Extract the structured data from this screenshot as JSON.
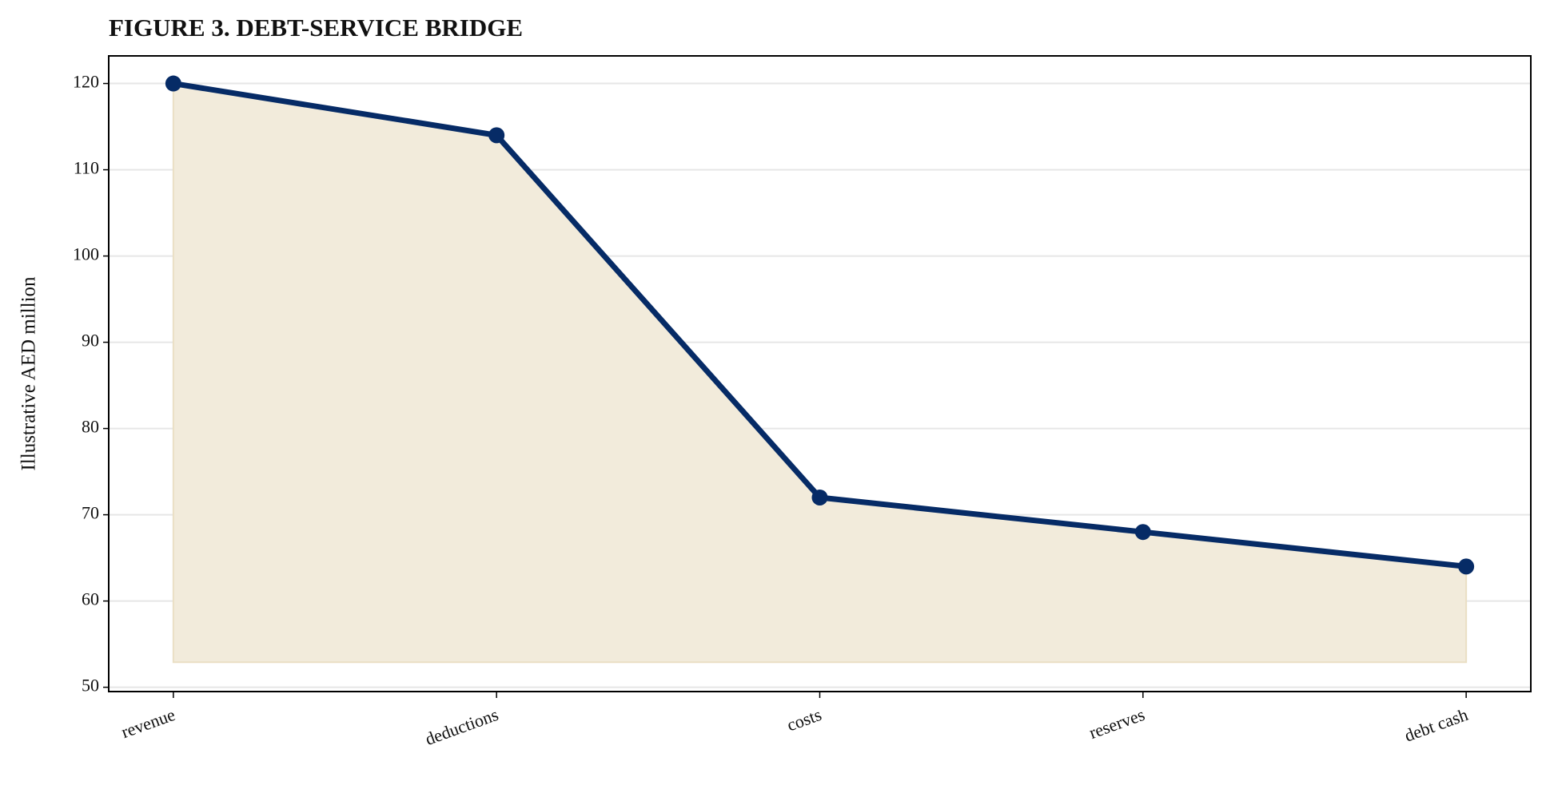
{
  "chart_data": {
    "type": "line",
    "title": "FIGURE 3. DEBT-SERVICE BRIDGE",
    "y_label": "Illustrative AED million",
    "categories": [
      "revenue",
      "deductions",
      "costs",
      "reserves",
      "debt cash"
    ],
    "values": [
      120,
      114,
      72,
      68,
      64
    ],
    "color": "#062b66",
    "area_color": "#f2ebdb",
    "area_baseline": 52.9,
    "ylim": [
      49.5,
      123.2
    ],
    "yticks": [
      50,
      60,
      70,
      80,
      90,
      100,
      110,
      120
    ],
    "grid": true
  }
}
